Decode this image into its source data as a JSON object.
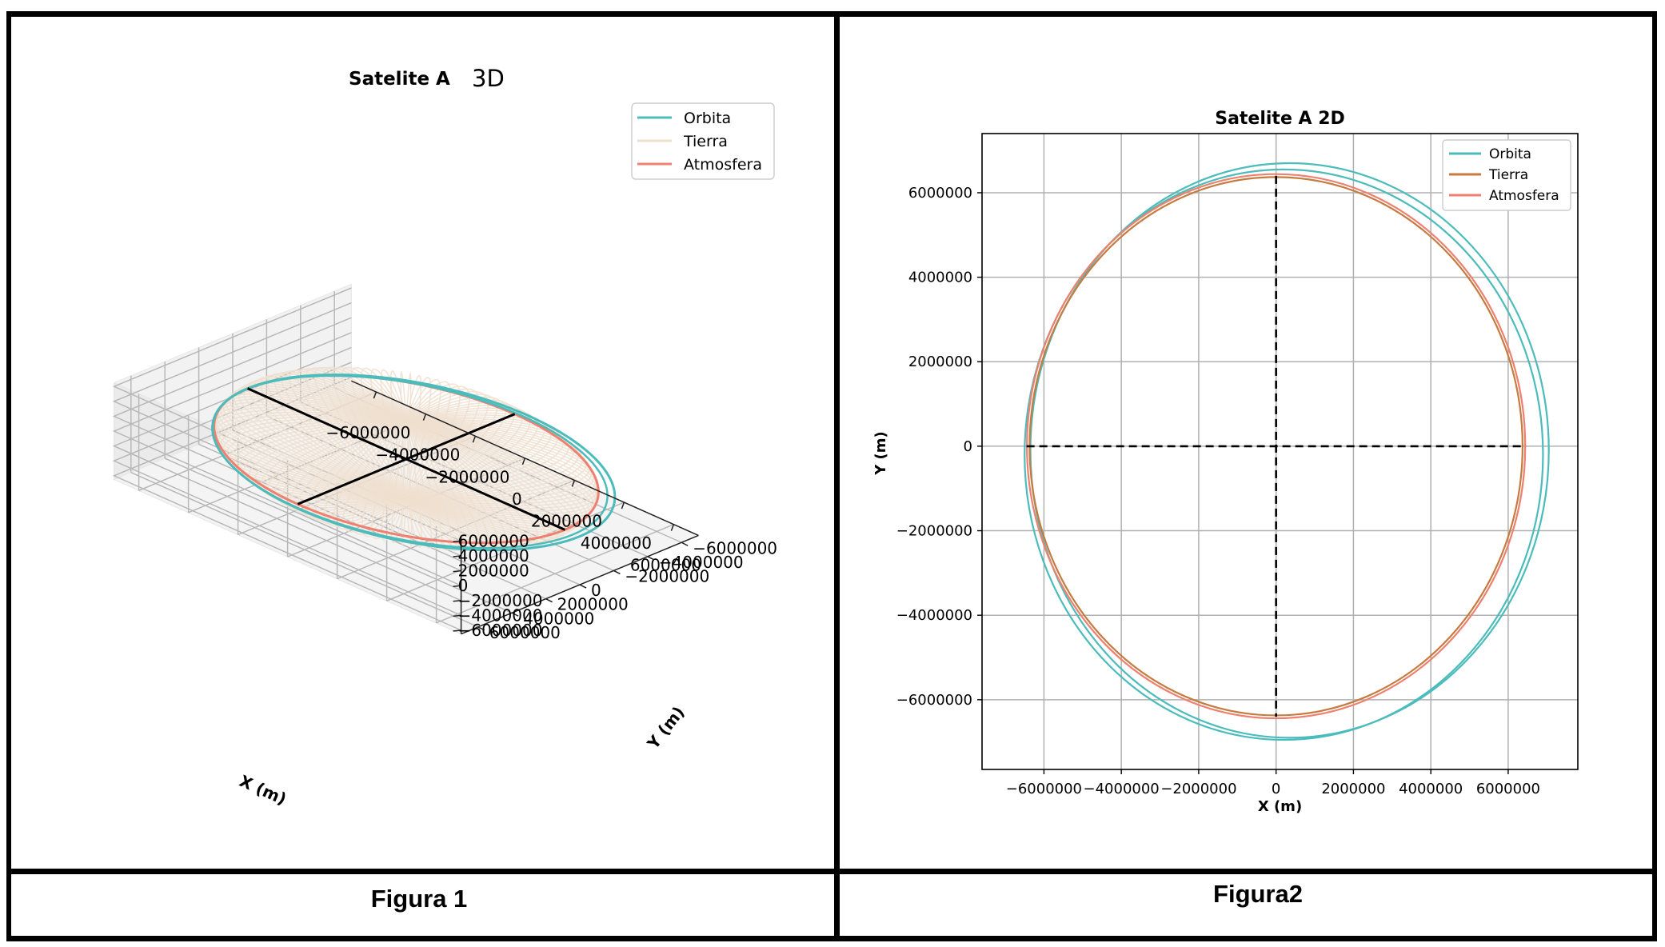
{
  "figures": {
    "left_caption": "Figura 1",
    "right_caption": "Figura2"
  },
  "chart_data": [
    {
      "type": "line",
      "projection": "3d",
      "title": "Satelite A",
      "title_suffix": "3D",
      "xlabel": "X (m)",
      "ylabel": "Y (m)",
      "zlabel": "",
      "xlim": [
        -7000000,
        7000000
      ],
      "ylim": [
        -7000000,
        7000000
      ],
      "zlim": [
        -6500000,
        6500000
      ],
      "x_ticks": [
        -6000000,
        -4000000,
        -2000000,
        0,
        2000000,
        4000000,
        6000000
      ],
      "y_ticks": [
        -6000000,
        -4000000,
        -2000000,
        0,
        2000000,
        4000000,
        6000000
      ],
      "z_ticks": [
        -6000000,
        -4000000,
        -2000000,
        0,
        2000000,
        4000000,
        6000000
      ],
      "grid": true,
      "legend_position": "upper-right",
      "series": [
        {
          "name": "Orbita",
          "color": "#4bbcbb",
          "shape": "orbit",
          "radius": 6700000,
          "center": [
            300000,
            0,
            0
          ]
        },
        {
          "name": "Tierra",
          "color": "#eedfcf",
          "shape": "sphere",
          "radius": 6371000,
          "center": [
            0,
            0,
            0
          ]
        },
        {
          "name": "Atmosfera",
          "color": "#ee8070",
          "shape": "circle",
          "radius": 6400000,
          "center": [
            0,
            0,
            0
          ]
        }
      ],
      "axes_lines_color": "#000000"
    },
    {
      "type": "line",
      "title": "Satelite A 2D",
      "xlabel": "X (m)",
      "ylabel": "Y (m)",
      "xlim": [
        -7600000,
        7800000
      ],
      "ylim": [
        -7650000,
        7400000
      ],
      "x_ticks": [
        -6000000,
        -4000000,
        -2000000,
        0,
        2000000,
        4000000,
        6000000
      ],
      "y_ticks": [
        -6000000,
        -4000000,
        -2000000,
        0,
        2000000,
        4000000,
        6000000
      ],
      "grid": true,
      "legend_position": "upper-right",
      "series": [
        {
          "name": "Orbita",
          "color": "#4bbcbb",
          "shape": "orbit-2-passes",
          "passes": [
            {
              "center": [
                350000,
                -100000
              ],
              "rx": 6700000,
              "ry": 6800000
            },
            {
              "center": [
                200000,
                -200000
              ],
              "rx": 6700000,
              "ry": 6750000
            }
          ]
        },
        {
          "name": "Tierra",
          "color": "#c67b3f",
          "shape": "circle",
          "center": [
            0,
            0
          ],
          "radius": 6371000
        },
        {
          "name": "Atmosfera",
          "color": "#ee8070",
          "shape": "circle",
          "center": [
            0,
            0
          ],
          "radius": 6440000
        }
      ],
      "crosshair": {
        "x_range": [
          -6450000,
          6450000
        ],
        "y_range": [
          -6400000,
          6400000
        ],
        "style": "dashed",
        "color": "#000000"
      }
    }
  ]
}
